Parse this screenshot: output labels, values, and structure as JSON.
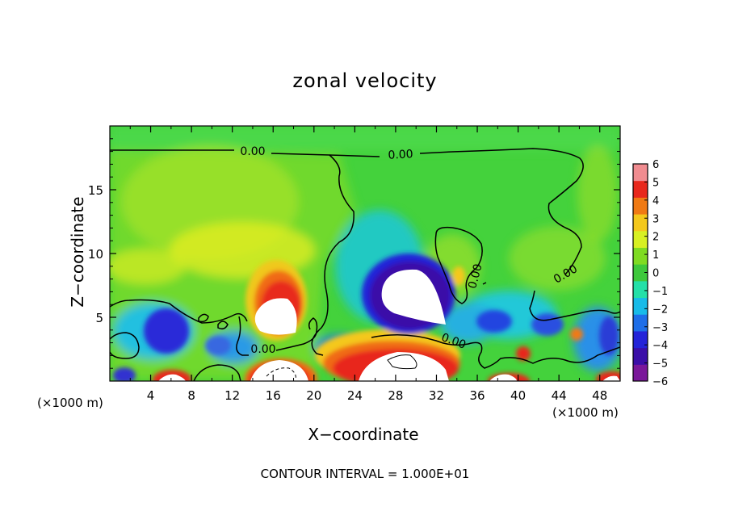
{
  "chart_data": {
    "type": "heatmap",
    "title": "zonal velocity",
    "xlabel": "X−coordinate",
    "ylabel": "Z−coordinate",
    "x_unit": "(×1000 m)",
    "xlim": [
      0,
      50
    ],
    "ylim": [
      0,
      20
    ],
    "x_ticks": [
      4,
      8,
      12,
      16,
      20,
      24,
      28,
      32,
      36,
      40,
      44,
      48
    ],
    "y_ticks": [
      5,
      10,
      15
    ],
    "colorbar": {
      "ticks": [
        "6",
        "5",
        "4",
        "3",
        "2",
        "1",
        "0",
        "−1",
        "−2",
        "−3",
        "−4",
        "−5",
        "−6"
      ],
      "range": [
        -6,
        6
      ],
      "colors": [
        "#7a189a",
        "#3b0fa8",
        "#2424d8",
        "#1e6ee8",
        "#18bbe8",
        "#24e0a8",
        "#3ec83c",
        "#7fdb22",
        "#d8f022",
        "#f4c81c",
        "#f07a14",
        "#e8281c",
        "#f08c90"
      ]
    },
    "contour_labels": [
      "0.00",
      "0.00",
      "0.00",
      "0.00",
      "0.00",
      "0.00"
    ],
    "contour_interval_text": "CONTOUR INTERVAL = 1.000E+01",
    "features": [
      {
        "x": 5.5,
        "z": 3.7,
        "value": -4.5
      },
      {
        "x": 16.0,
        "z": 5.5,
        "value": 6.5
      },
      {
        "x": 17.0,
        "z": 0.9,
        "value": 6.5
      },
      {
        "x": 29.5,
        "z": 6.6,
        "value": -7.0
      },
      {
        "x": 28.5,
        "z": 1.3,
        "value": 6.5
      },
      {
        "x": 46.0,
        "z": 4.0,
        "value": -3.5
      }
    ]
  }
}
